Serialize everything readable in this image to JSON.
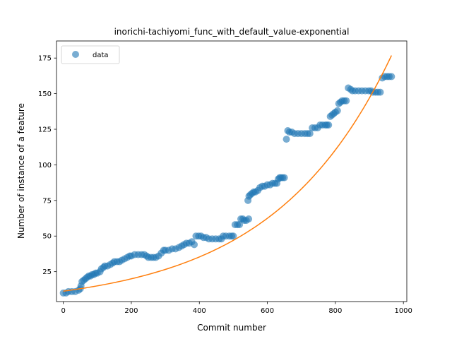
{
  "chart_data": {
    "type": "scatter",
    "title": "inorichi-tachiyomi_func_with_default_value-exponential",
    "xlabel": "Commit number",
    "ylabel": "Number of instance of a feature",
    "xlim": [
      -20,
      1010
    ],
    "ylim": [
      4,
      187
    ],
    "xticks": [
      0,
      200,
      400,
      600,
      800,
      1000
    ],
    "yticks": [
      25,
      50,
      75,
      100,
      125,
      150,
      175
    ],
    "grid": false,
    "legend": {
      "placement": "top-left",
      "entries": [
        "data"
      ]
    },
    "colors": {
      "data": "#1f77b4",
      "fit": "#ff7f0e"
    },
    "series": [
      {
        "name": "data",
        "kind": "scatter",
        "points": [
          [
            0,
            10
          ],
          [
            8,
            10
          ],
          [
            15,
            11
          ],
          [
            25,
            11
          ],
          [
            35,
            11
          ],
          [
            45,
            12
          ],
          [
            50,
            13
          ],
          [
            52,
            15
          ],
          [
            55,
            18
          ],
          [
            60,
            19
          ],
          [
            65,
            20
          ],
          [
            70,
            21
          ],
          [
            75,
            22
          ],
          [
            80,
            22
          ],
          [
            85,
            23
          ],
          [
            90,
            23
          ],
          [
            95,
            24
          ],
          [
            100,
            24
          ],
          [
            108,
            25
          ],
          [
            112,
            27
          ],
          [
            118,
            28
          ],
          [
            122,
            29
          ],
          [
            130,
            29
          ],
          [
            138,
            30
          ],
          [
            145,
            31
          ],
          [
            150,
            32
          ],
          [
            158,
            32
          ],
          [
            165,
            32
          ],
          [
            172,
            33
          ],
          [
            180,
            34
          ],
          [
            188,
            35
          ],
          [
            195,
            36
          ],
          [
            200,
            36
          ],
          [
            210,
            37
          ],
          [
            220,
            37
          ],
          [
            230,
            37
          ],
          [
            238,
            37
          ],
          [
            245,
            36
          ],
          [
            250,
            35
          ],
          [
            258,
            35
          ],
          [
            265,
            35
          ],
          [
            272,
            35
          ],
          [
            280,
            36
          ],
          [
            288,
            38
          ],
          [
            295,
            40
          ],
          [
            300,
            40
          ],
          [
            310,
            40
          ],
          [
            320,
            41
          ],
          [
            330,
            41
          ],
          [
            340,
            42
          ],
          [
            348,
            43
          ],
          [
            355,
            44
          ],
          [
            362,
            45
          ],
          [
            370,
            45
          ],
          [
            378,
            46
          ],
          [
            385,
            44
          ],
          [
            390,
            50
          ],
          [
            398,
            50
          ],
          [
            405,
            50
          ],
          [
            412,
            49
          ],
          [
            420,
            49
          ],
          [
            428,
            48
          ],
          [
            438,
            48
          ],
          [
            448,
            48
          ],
          [
            458,
            48
          ],
          [
            465,
            48
          ],
          [
            470,
            50
          ],
          [
            478,
            50
          ],
          [
            488,
            50
          ],
          [
            495,
            50
          ],
          [
            500,
            50
          ],
          [
            505,
            58
          ],
          [
            512,
            58
          ],
          [
            518,
            58
          ],
          [
            522,
            62
          ],
          [
            528,
            62
          ],
          [
            532,
            61
          ],
          [
            538,
            61
          ],
          [
            545,
            62
          ],
          [
            543,
            75
          ],
          [
            546,
            78
          ],
          [
            550,
            79
          ],
          [
            555,
            80
          ],
          [
            560,
            81
          ],
          [
            565,
            81
          ],
          [
            572,
            82
          ],
          [
            578,
            84
          ],
          [
            585,
            85
          ],
          [
            592,
            85
          ],
          [
            600,
            86
          ],
          [
            608,
            86
          ],
          [
            615,
            87
          ],
          [
            622,
            87
          ],
          [
            628,
            87
          ],
          [
            632,
            90
          ],
          [
            636,
            91
          ],
          [
            640,
            91
          ],
          [
            645,
            91
          ],
          [
            650,
            91
          ],
          [
            656,
            118
          ],
          [
            660,
            124
          ],
          [
            665,
            123
          ],
          [
            672,
            123
          ],
          [
            680,
            122
          ],
          [
            690,
            122
          ],
          [
            700,
            122
          ],
          [
            710,
            122
          ],
          [
            718,
            122
          ],
          [
            725,
            122
          ],
          [
            732,
            126
          ],
          [
            740,
            126
          ],
          [
            748,
            126
          ],
          [
            755,
            128
          ],
          [
            762,
            128
          ],
          [
            770,
            128
          ],
          [
            775,
            128
          ],
          [
            780,
            128
          ],
          [
            785,
            134
          ],
          [
            790,
            135
          ],
          [
            795,
            136
          ],
          [
            800,
            137
          ],
          [
            806,
            138
          ],
          [
            810,
            143
          ],
          [
            815,
            144
          ],
          [
            820,
            145
          ],
          [
            826,
            145
          ],
          [
            832,
            145
          ],
          [
            838,
            154
          ],
          [
            845,
            153
          ],
          [
            850,
            152
          ],
          [
            858,
            152
          ],
          [
            868,
            152
          ],
          [
            878,
            152
          ],
          [
            888,
            152
          ],
          [
            898,
            152
          ],
          [
            905,
            152
          ],
          [
            910,
            151
          ],
          [
            918,
            151
          ],
          [
            925,
            151
          ],
          [
            932,
            151
          ],
          [
            938,
            161
          ],
          [
            945,
            162
          ],
          [
            952,
            162
          ],
          [
            958,
            162
          ],
          [
            965,
            162
          ]
        ]
      },
      {
        "kind": "line",
        "fit": {
          "a": 11.3,
          "b": 0.00285
        },
        "x_range": [
          0,
          965
        ]
      }
    ]
  }
}
